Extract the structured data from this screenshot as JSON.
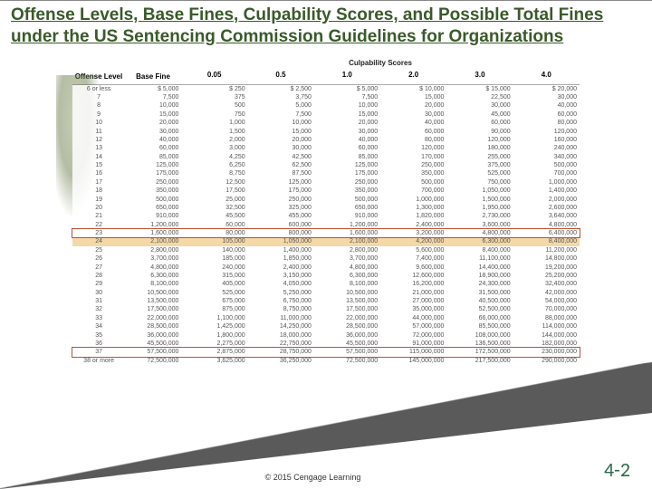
{
  "title": "Offense Levels, Base Fines, Culpability Scores, and Possible Total Fines under the US Sentencing Commission Guidelines for Organizations",
  "headers": {
    "offense": "Offense Level",
    "base": "Base Fine",
    "culpability": "Culpability Scores",
    "cols": [
      "0.05",
      "0.5",
      "1.0",
      "2.0",
      "3.0",
      "4.0"
    ]
  },
  "rows": [
    {
      "lvl": "6 or less",
      "base": "$ 5,000",
      "c": [
        "$ 250",
        "$ 2,500",
        "$ 5,000",
        "$ 10,000",
        "$ 15,000",
        "$ 20,000"
      ]
    },
    {
      "lvl": "7",
      "base": "7,500",
      "c": [
        "375",
        "3,750",
        "7,500",
        "15,000",
        "22,500",
        "30,000"
      ]
    },
    {
      "lvl": "8",
      "base": "10,000",
      "c": [
        "500",
        "5,000",
        "10,000",
        "20,000",
        "30,000",
        "40,000"
      ]
    },
    {
      "lvl": "9",
      "base": "15,000",
      "c": [
        "750",
        "7,500",
        "15,000",
        "30,000",
        "45,000",
        "60,000"
      ]
    },
    {
      "lvl": "10",
      "base": "20,000",
      "c": [
        "1,000",
        "10,000",
        "20,000",
        "40,000",
        "60,000",
        "80,000"
      ]
    },
    {
      "lvl": "11",
      "base": "30,000",
      "c": [
        "1,500",
        "15,000",
        "30,000",
        "60,000",
        "90,000",
        "120,000"
      ]
    },
    {
      "lvl": "12",
      "base": "40,000",
      "c": [
        "2,000",
        "20,000",
        "40,000",
        "80,000",
        "120,000",
        "160,000"
      ]
    },
    {
      "lvl": "13",
      "base": "60,000",
      "c": [
        "3,000",
        "30,000",
        "60,000",
        "120,000",
        "180,000",
        "240,000"
      ]
    },
    {
      "lvl": "14",
      "base": "85,000",
      "c": [
        "4,250",
        "42,500",
        "85,000",
        "170,000",
        "255,000",
        "340,000"
      ]
    },
    {
      "lvl": "15",
      "base": "125,000",
      "c": [
        "6,250",
        "62,500",
        "125,000",
        "250,000",
        "375,000",
        "500,000"
      ]
    },
    {
      "lvl": "16",
      "base": "175,000",
      "c": [
        "8,750",
        "87,500",
        "175,000",
        "350,000",
        "525,000",
        "700,000"
      ]
    },
    {
      "lvl": "17",
      "base": "250,000",
      "c": [
        "12,500",
        "125,000",
        "250,000",
        "500,000",
        "750,000",
        "1,000,000"
      ]
    },
    {
      "lvl": "18",
      "base": "350,000",
      "c": [
        "17,500",
        "175,000",
        "350,000",
        "700,000",
        "1,050,000",
        "1,400,000"
      ]
    },
    {
      "lvl": "19",
      "base": "500,000",
      "c": [
        "25,000",
        "250,000",
        "500,000",
        "1,000,000",
        "1,500,000",
        "2,000,000"
      ]
    },
    {
      "lvl": "20",
      "base": "650,000",
      "c": [
        "32,500",
        "325,000",
        "650,000",
        "1,300,000",
        "1,950,000",
        "2,600,000"
      ]
    },
    {
      "lvl": "21",
      "base": "910,000",
      "c": [
        "45,500",
        "455,000",
        "910,000",
        "1,820,000",
        "2,730,000",
        "3,640,000"
      ]
    },
    {
      "lvl": "22",
      "base": "1,200,000",
      "c": [
        "60,000",
        "600,000",
        "1,200,000",
        "2,400,000",
        "3,600,000",
        "4,800,000"
      ]
    },
    {
      "lvl": "23",
      "base": "1,600,000",
      "c": [
        "80,000",
        "800,000",
        "1,600,000",
        "3,200,000",
        "4,800,000",
        "6,400,000"
      ],
      "hl": "red"
    },
    {
      "lvl": "24",
      "base": "2,100,000",
      "c": [
        "105,000",
        "1,050,000",
        "2,100,000",
        "4,200,000",
        "6,300,000",
        "8,400,000"
      ],
      "hl": "orange"
    },
    {
      "lvl": "25",
      "base": "2,800,000",
      "c": [
        "140,000",
        "1,400,000",
        "2,800,000",
        "5,600,000",
        "8,400,000",
        "11,200,000"
      ]
    },
    {
      "lvl": "26",
      "base": "3,700,000",
      "c": [
        "185,000",
        "1,850,000",
        "3,700,000",
        "7,400,000",
        "11,100,000",
        "14,800,000"
      ]
    },
    {
      "lvl": "27",
      "base": "4,800,000",
      "c": [
        "240,000",
        "2,400,000",
        "4,800,000",
        "9,600,000",
        "14,400,000",
        "19,200,000"
      ]
    },
    {
      "lvl": "28",
      "base": "6,300,000",
      "c": [
        "315,000",
        "3,150,000",
        "6,300,000",
        "12,600,000",
        "18,900,000",
        "25,200,000"
      ]
    },
    {
      "lvl": "29",
      "base": "8,100,000",
      "c": [
        "405,000",
        "4,050,000",
        "8,100,000",
        "16,200,000",
        "24,300,000",
        "32,400,000"
      ]
    },
    {
      "lvl": "30",
      "base": "10,500,000",
      "c": [
        "525,000",
        "5,250,000",
        "10,500,000",
        "21,000,000",
        "31,500,000",
        "42,000,000"
      ]
    },
    {
      "lvl": "31",
      "base": "13,500,000",
      "c": [
        "675,000",
        "6,750,000",
        "13,500,000",
        "27,000,000",
        "40,500,000",
        "54,000,000"
      ]
    },
    {
      "lvl": "32",
      "base": "17,500,000",
      "c": [
        "875,000",
        "8,750,000",
        "17,500,000",
        "35,000,000",
        "52,500,000",
        "70,000,000"
      ]
    },
    {
      "lvl": "33",
      "base": "22,000,000",
      "c": [
        "1,100,000",
        "11,000,000",
        "22,000,000",
        "44,000,000",
        "66,000,000",
        "88,000,000"
      ]
    },
    {
      "lvl": "34",
      "base": "28,500,000",
      "c": [
        "1,425,000",
        "14,250,000",
        "28,500,000",
        "57,000,000",
        "85,500,000",
        "114,000,000"
      ]
    },
    {
      "lvl": "35",
      "base": "36,000,000",
      "c": [
        "1,800,000",
        "18,000,000",
        "36,000,000",
        "72,000,000",
        "108,000,000",
        "144,000,000"
      ]
    },
    {
      "lvl": "36",
      "base": "45,500,000",
      "c": [
        "2,275,000",
        "22,750,000",
        "45,500,000",
        "91,000,000",
        "136,500,000",
        "182,000,000"
      ]
    },
    {
      "lvl": "37",
      "base": "57,500,000",
      "c": [
        "2,875,000",
        "28,750,000",
        "57,500,000",
        "115,000,000",
        "172,500,000",
        "230,000,000"
      ],
      "hl": "red"
    },
    {
      "lvl": "38 or more",
      "base": "72,500,000",
      "c": [
        "3,625,000",
        "36,250,000",
        "72,500,000",
        "145,000,000",
        "217,500,000",
        "290,000,000"
      ]
    }
  ],
  "copyright": "© 2015 Cengage Learning",
  "pagenum": "4-2",
  "colors": {
    "title": "#3a5a2a",
    "pagenum": "#2a6a4a",
    "hl_orange": "#f5d8a8",
    "hl_red_border": "#c05030"
  }
}
